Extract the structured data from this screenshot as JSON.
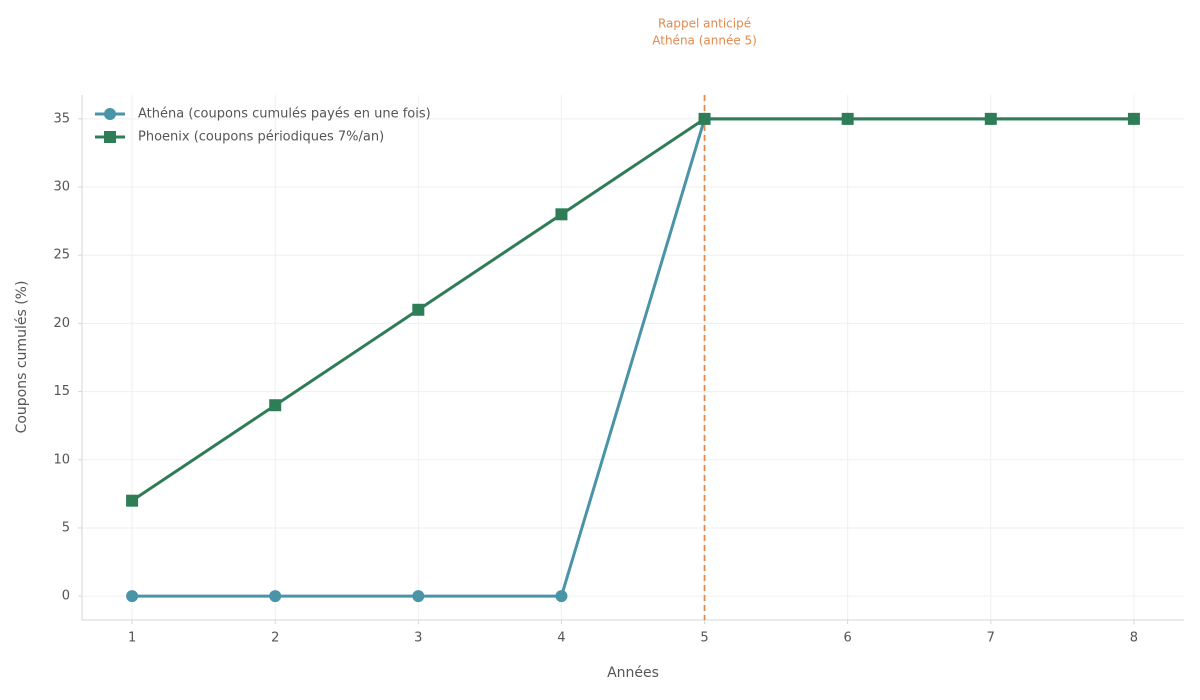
{
  "chart_data": {
    "type": "line",
    "xlabel": "Années",
    "ylabel": "Coupons cumulés (%)",
    "x": [
      1,
      2,
      3,
      4,
      5,
      6,
      7,
      8
    ],
    "series": [
      {
        "name": "Athéna (coupons cumulés payés en une fois)",
        "color": "#4a94a8",
        "marker": "circle",
        "values": [
          0,
          0,
          0,
          0,
          35,
          35,
          35,
          35
        ]
      },
      {
        "name": "Phoenix (coupons périodiques 7%/an)",
        "color": "#2e7d57",
        "marker": "square",
        "values": [
          7,
          14,
          21,
          28,
          35,
          35,
          35,
          35
        ]
      }
    ],
    "xlim": [
      0.65,
      8.35
    ],
    "ylim": [
      -1.75,
      36.75
    ],
    "xticks": [
      1,
      2,
      3,
      4,
      5,
      6,
      7,
      8
    ],
    "yticks": [
      0,
      5,
      10,
      15,
      20,
      25,
      30,
      35
    ],
    "grid": true,
    "legend": "upper left",
    "annotation": {
      "x": 5,
      "color": "#e08a4f",
      "text": [
        "Rappel anticipé",
        "Athéna (année 5)"
      ]
    }
  }
}
